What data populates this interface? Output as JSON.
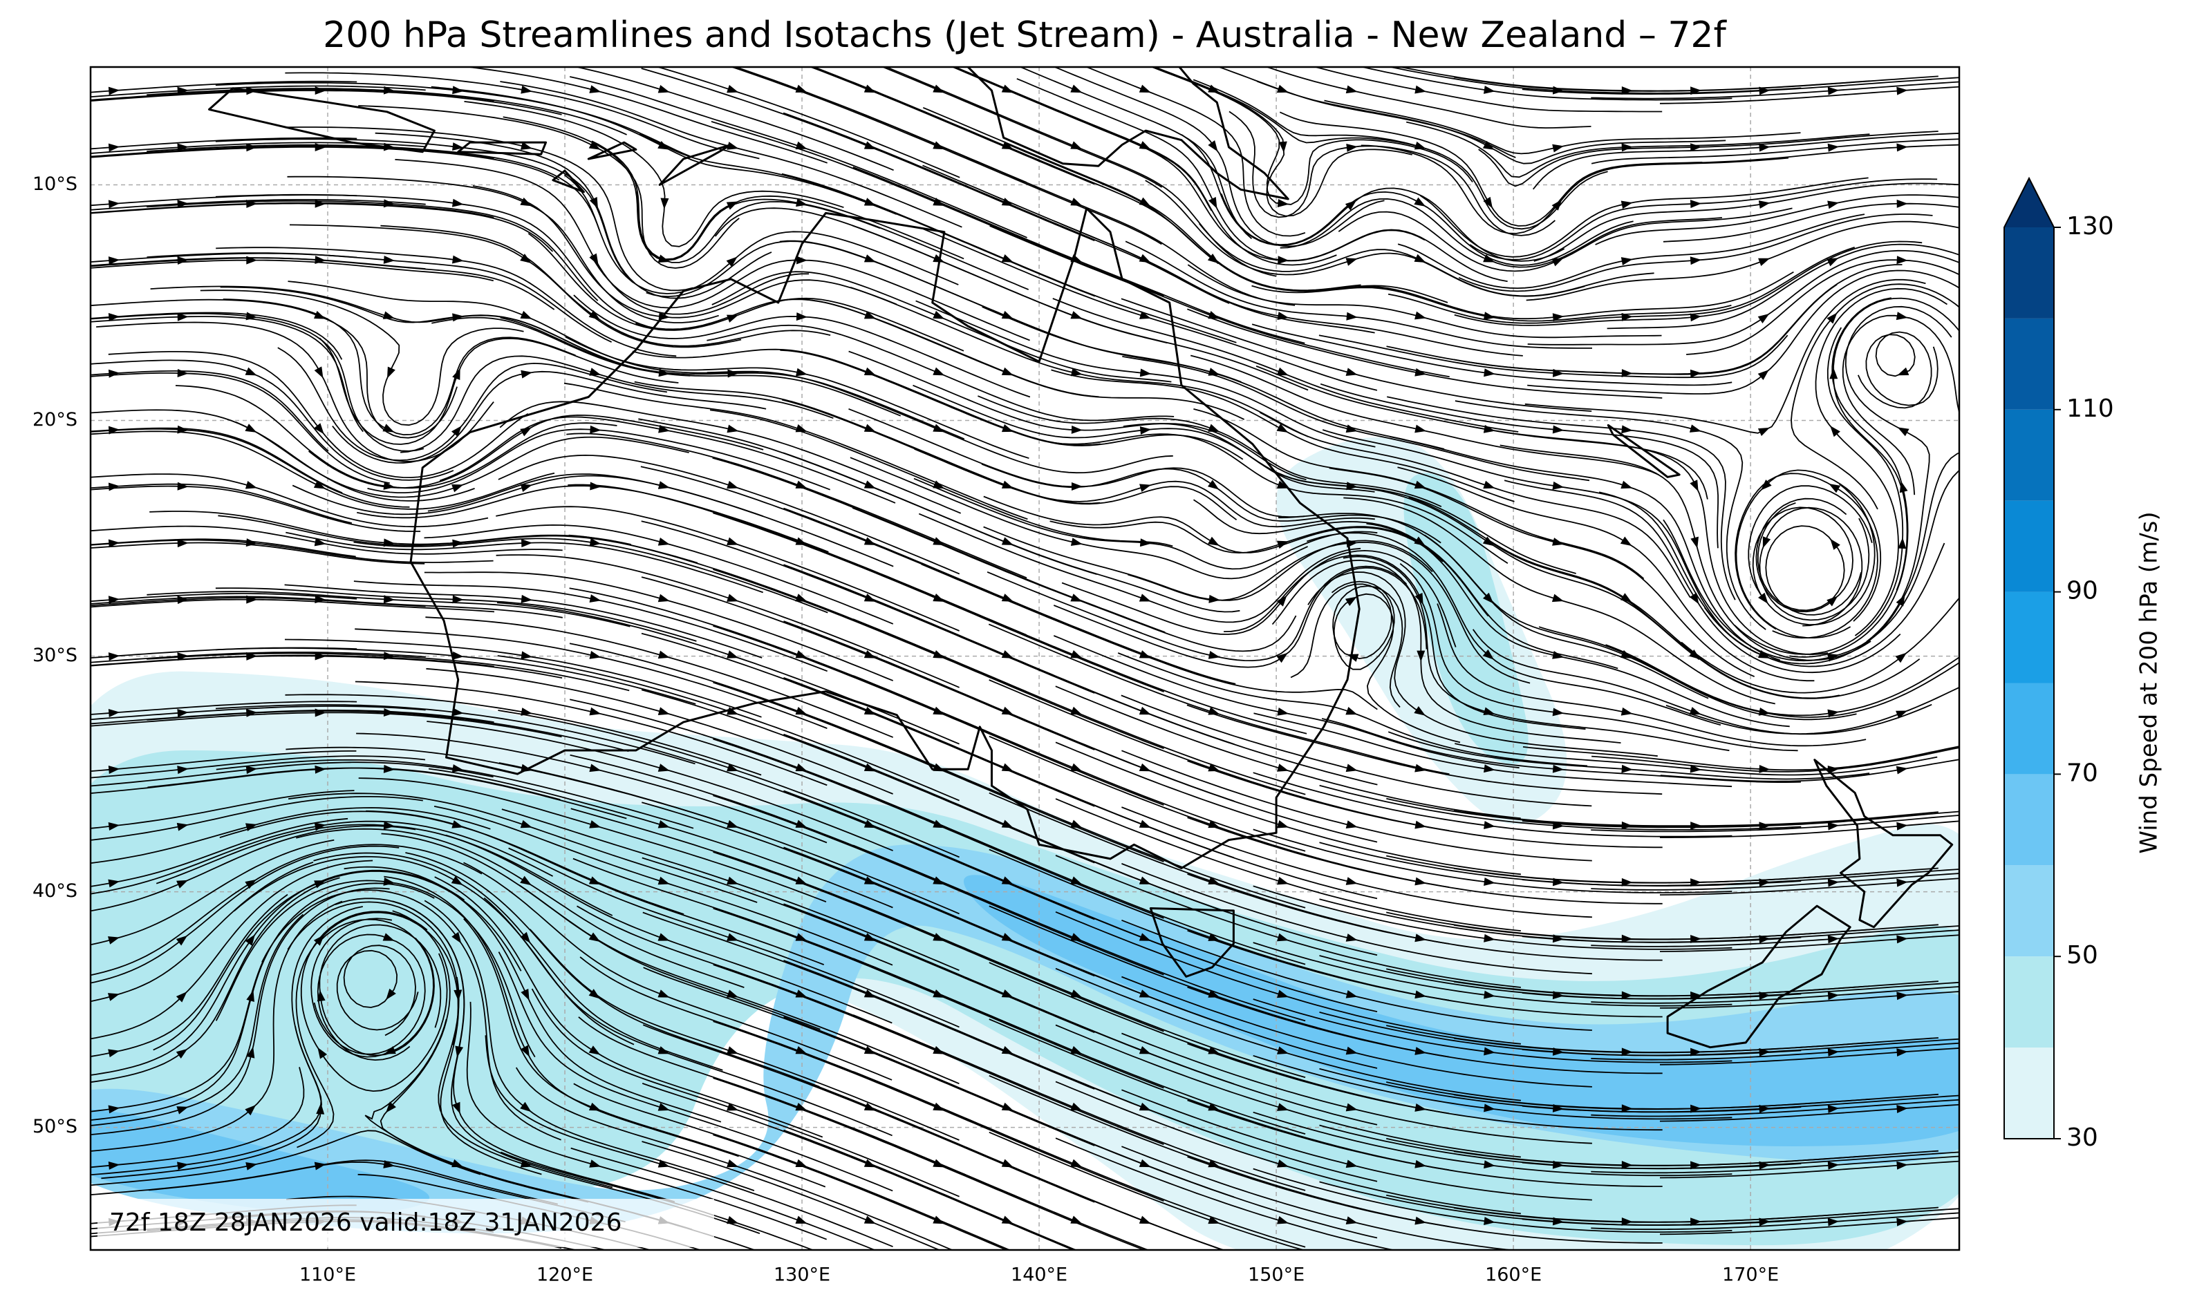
{
  "title": "200 hPa Streamlines and Isotachs (Jet Stream) - Australia - New Zealand – 72f",
  "map": {
    "xlim": [
      100,
      178.8
    ],
    "ylim": [
      -55.2,
      -5
    ],
    "xticks": [
      {
        "value": 110,
        "label": "110°E"
      },
      {
        "value": 120,
        "label": "120°E"
      },
      {
        "value": 130,
        "label": "130°E"
      },
      {
        "value": 140,
        "label": "140°E"
      },
      {
        "value": 150,
        "label": "150°E"
      },
      {
        "value": 160,
        "label": "160°E"
      },
      {
        "value": 170,
        "label": "170°E"
      }
    ],
    "yticks": [
      {
        "value": -10,
        "label": "10°S"
      },
      {
        "value": -20,
        "label": "20°S"
      },
      {
        "value": -30,
        "label": "30°S"
      },
      {
        "value": -40,
        "label": "40°S"
      },
      {
        "value": -50,
        "label": "50°S"
      }
    ],
    "grid": true,
    "annotation": "72f 18Z 28JAN2026 valid:18Z 31JAN2026"
  },
  "colorbar": {
    "label": "Wind Speed at 200 hPa (m/s)",
    "levels": [
      30,
      40,
      50,
      60,
      70,
      80,
      90,
      100,
      110,
      120,
      130
    ],
    "colors": [
      "#dff4f8",
      "#b2e8ef",
      "#8fd6f5",
      "#6cc6f4",
      "#3fb2ef",
      "#1b9fe6",
      "#0a89d5",
      "#0673bd",
      "#055ba3",
      "#044384"
    ],
    "extend_color": "#03336f",
    "ticks": [
      30,
      50,
      70,
      90,
      110,
      130
    ]
  }
}
